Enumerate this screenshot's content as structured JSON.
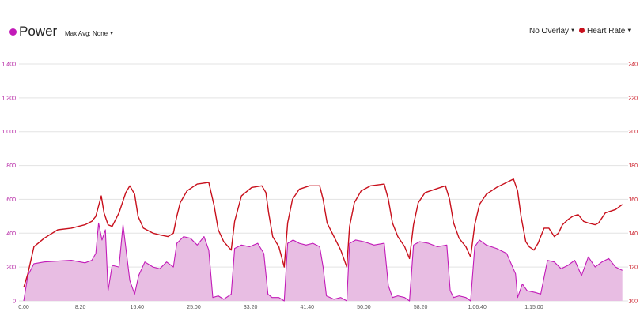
{
  "header": {
    "title": "Power",
    "max_avg_label": "Max Avg: None",
    "overlay_label": "No Overlay",
    "hr_label": "Heart Rate"
  },
  "colors": {
    "power_line": "#c21bb8",
    "power_fill": "#e8bde3",
    "heart_rate_line": "#c8101c",
    "grid": "#e3e3e3",
    "left_axis_text": "#b0169e",
    "right_axis_text": "#c8101c"
  },
  "icons": {
    "power_legend": "circle-dot-icon",
    "hr_legend": "circle-dot-icon",
    "dropdown": "caret-down-icon"
  },
  "chart_data": {
    "type": "line",
    "x_unit": "elapsed time (mm:ss / h:mm:ss)",
    "x_range_minutes": [
      0,
      84.5
    ],
    "x_ticks": [
      {
        "minutes": 0,
        "label": "0:00"
      },
      {
        "minutes": 8.333,
        "label": "8:20"
      },
      {
        "minutes": 16.667,
        "label": "16:40"
      },
      {
        "minutes": 25,
        "label": "25:00"
      },
      {
        "minutes": 33.333,
        "label": "33:20"
      },
      {
        "minutes": 41.667,
        "label": "41:40"
      },
      {
        "minutes": 50,
        "label": "50:00"
      },
      {
        "minutes": 58.333,
        "label": "58:20"
      },
      {
        "minutes": 66.667,
        "label": "1:06:40"
      },
      {
        "minutes": 75,
        "label": "1:15:00"
      }
    ],
    "left_axis": {
      "range": [
        0,
        1400
      ],
      "ticks": [
        0,
        200,
        400,
        600,
        800,
        "1,000",
        "1,200",
        "1,400"
      ]
    },
    "right_axis": {
      "range": [
        100,
        240
      ],
      "ticks": [
        100,
        120,
        140,
        160,
        180,
        200,
        220,
        240
      ]
    },
    "grid": true,
    "series": [
      {
        "name": "Heart Rate",
        "axis": "right",
        "style": "line",
        "points": [
          [
            0,
            108
          ],
          [
            0.6,
            116
          ],
          [
            1.5,
            132
          ],
          [
            3,
            137
          ],
          [
            5,
            142
          ],
          [
            7,
            143
          ],
          [
            9,
            145
          ],
          [
            10,
            147
          ],
          [
            10.6,
            150
          ],
          [
            11.4,
            162
          ],
          [
            11.8,
            152
          ],
          [
            12.4,
            145
          ],
          [
            13,
            144
          ],
          [
            14,
            152
          ],
          [
            15,
            164
          ],
          [
            15.6,
            168
          ],
          [
            16.3,
            163
          ],
          [
            16.8,
            150
          ],
          [
            17.6,
            143
          ],
          [
            19,
            140
          ],
          [
            20,
            139
          ],
          [
            21.2,
            138
          ],
          [
            22,
            140
          ],
          [
            22.5,
            150
          ],
          [
            23,
            158
          ],
          [
            24,
            165
          ],
          [
            25.5,
            169
          ],
          [
            27.2,
            170
          ],
          [
            28,
            156
          ],
          [
            28.6,
            142
          ],
          [
            29.4,
            135
          ],
          [
            30.5,
            130
          ],
          [
            31,
            147
          ],
          [
            32,
            162
          ],
          [
            33.5,
            167
          ],
          [
            35,
            168
          ],
          [
            35.6,
            164
          ],
          [
            36,
            152
          ],
          [
            36.6,
            138
          ],
          [
            37.5,
            132
          ],
          [
            38.3,
            120
          ],
          [
            38.8,
            146
          ],
          [
            39.5,
            160
          ],
          [
            40.5,
            166
          ],
          [
            42,
            168
          ],
          [
            43.5,
            168
          ],
          [
            44,
            160
          ],
          [
            44.6,
            146
          ],
          [
            45.6,
            138
          ],
          [
            46.6,
            130
          ],
          [
            47.5,
            120
          ],
          [
            47.9,
            144
          ],
          [
            48.6,
            158
          ],
          [
            49.6,
            165
          ],
          [
            51,
            168
          ],
          [
            53,
            169
          ],
          [
            53.6,
            160
          ],
          [
            54.2,
            146
          ],
          [
            55,
            138
          ],
          [
            56,
            132
          ],
          [
            56.7,
            125
          ],
          [
            57.3,
            145
          ],
          [
            58,
            158
          ],
          [
            59,
            164
          ],
          [
            60.5,
            166
          ],
          [
            62,
            168
          ],
          [
            62.6,
            160
          ],
          [
            63.2,
            146
          ],
          [
            64,
            137
          ],
          [
            65,
            132
          ],
          [
            65.7,
            126
          ],
          [
            66.3,
            145
          ],
          [
            67,
            157
          ],
          [
            68,
            163
          ],
          [
            69.5,
            167
          ],
          [
            71,
            170
          ],
          [
            72,
            172
          ],
          [
            72.6,
            165
          ],
          [
            73.1,
            150
          ],
          [
            73.8,
            135
          ],
          [
            74.3,
            132
          ],
          [
            75,
            130
          ],
          [
            75.6,
            134
          ],
          [
            76.5,
            143
          ],
          [
            77.2,
            143
          ],
          [
            78,
            138
          ],
          [
            78.6,
            140
          ],
          [
            79.2,
            145
          ],
          [
            80,
            148
          ],
          [
            80.7,
            150
          ],
          [
            81.5,
            151
          ],
          [
            82.3,
            147
          ],
          [
            83,
            146
          ],
          [
            84,
            145
          ],
          [
            84.5,
            146
          ],
          [
            85.5,
            152
          ],
          [
            87,
            154
          ],
          [
            88,
            157
          ]
        ]
      },
      {
        "name": "Power",
        "axis": "left",
        "style": "area",
        "points": [
          [
            0,
            0
          ],
          [
            0.6,
            150
          ],
          [
            1.5,
            220
          ],
          [
            3,
            230
          ],
          [
            5,
            235
          ],
          [
            7,
            240
          ],
          [
            9,
            225
          ],
          [
            10,
            240
          ],
          [
            10.6,
            280
          ],
          [
            11,
            460
          ],
          [
            11.5,
            360
          ],
          [
            12,
            420
          ],
          [
            12.4,
            60
          ],
          [
            13,
            210
          ],
          [
            14,
            200
          ],
          [
            14.6,
            450
          ],
          [
            15.6,
            120
          ],
          [
            16.3,
            40
          ],
          [
            16.9,
            150
          ],
          [
            17.8,
            230
          ],
          [
            19,
            200
          ],
          [
            20,
            190
          ],
          [
            21,
            230
          ],
          [
            22,
            200
          ],
          [
            22.5,
            340
          ],
          [
            23.5,
            380
          ],
          [
            24.5,
            370
          ],
          [
            25.5,
            330
          ],
          [
            26.5,
            380
          ],
          [
            27.2,
            300
          ],
          [
            27.8,
            20
          ],
          [
            28.6,
            30
          ],
          [
            29.4,
            10
          ],
          [
            30.5,
            40
          ],
          [
            31,
            310
          ],
          [
            32,
            330
          ],
          [
            33.2,
            320
          ],
          [
            34.4,
            340
          ],
          [
            35.3,
            280
          ],
          [
            35.9,
            40
          ],
          [
            36.5,
            20
          ],
          [
            37.5,
            20
          ],
          [
            38.3,
            0
          ],
          [
            38.8,
            340
          ],
          [
            39.6,
            360
          ],
          [
            40.5,
            340
          ],
          [
            41.5,
            330
          ],
          [
            42.5,
            340
          ],
          [
            43.5,
            320
          ],
          [
            44,
            200
          ],
          [
            44.5,
            30
          ],
          [
            45.6,
            10
          ],
          [
            46.6,
            20
          ],
          [
            47.5,
            0
          ],
          [
            47.9,
            340
          ],
          [
            48.8,
            360
          ],
          [
            50,
            350
          ],
          [
            51.5,
            330
          ],
          [
            53,
            340
          ],
          [
            53.6,
            90
          ],
          [
            54.2,
            20
          ],
          [
            55,
            30
          ],
          [
            56,
            20
          ],
          [
            56.7,
            0
          ],
          [
            57.3,
            330
          ],
          [
            58.2,
            350
          ],
          [
            59.5,
            340
          ],
          [
            60.8,
            320
          ],
          [
            62.2,
            330
          ],
          [
            62.7,
            60
          ],
          [
            63.2,
            20
          ],
          [
            64,
            30
          ],
          [
            65,
            20
          ],
          [
            65.7,
            0
          ],
          [
            66.3,
            320
          ],
          [
            67,
            360
          ],
          [
            68,
            330
          ],
          [
            69.5,
            310
          ],
          [
            71,
            280
          ],
          [
            72.3,
            160
          ],
          [
            72.6,
            20
          ],
          [
            73.3,
            100
          ],
          [
            74,
            60
          ],
          [
            75.2,
            50
          ],
          [
            76,
            40
          ],
          [
            77,
            240
          ],
          [
            78,
            230
          ],
          [
            79,
            190
          ],
          [
            80,
            210
          ],
          [
            81,
            240
          ],
          [
            82,
            150
          ],
          [
            83,
            260
          ],
          [
            84,
            200
          ],
          [
            85,
            230
          ],
          [
            86,
            250
          ],
          [
            87,
            200
          ],
          [
            88,
            180
          ]
        ]
      }
    ],
    "chart_markers": {
      "power_range_minutes": [
        0,
        88.5
      ]
    }
  }
}
